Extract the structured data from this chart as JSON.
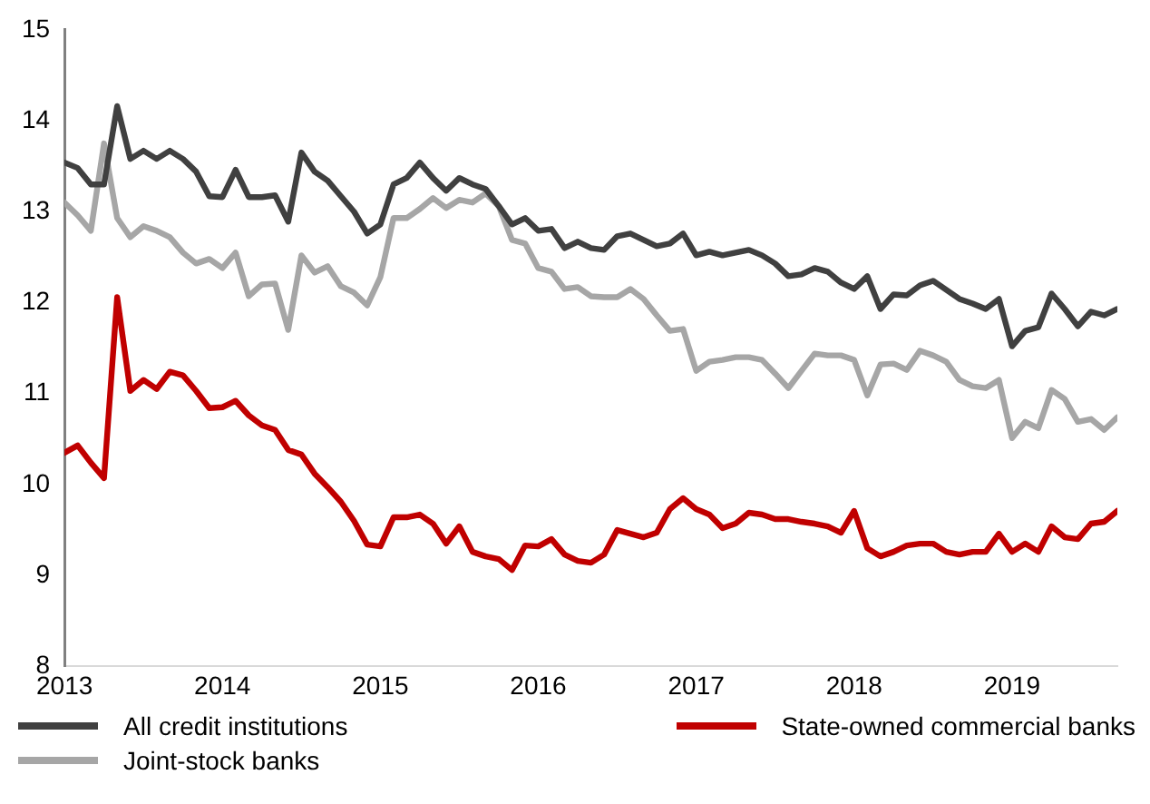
{
  "chart_data": {
    "type": "line",
    "x": [
      "2013-01",
      "2013-02",
      "2013-03",
      "2013-04",
      "2013-05",
      "2013-06",
      "2013-07",
      "2013-08",
      "2013-09",
      "2013-10",
      "2013-11",
      "2013-12",
      "2014-01",
      "2014-02",
      "2014-03",
      "2014-04",
      "2014-05",
      "2014-06",
      "2014-07",
      "2014-08",
      "2014-09",
      "2014-10",
      "2014-11",
      "2014-12",
      "2015-01",
      "2015-02",
      "2015-03",
      "2015-04",
      "2015-05",
      "2015-06",
      "2015-07",
      "2015-08",
      "2015-09",
      "2015-10",
      "2015-11",
      "2015-12",
      "2016-01",
      "2016-02",
      "2016-03",
      "2016-04",
      "2016-05",
      "2016-06",
      "2016-07",
      "2016-08",
      "2016-09",
      "2016-10",
      "2016-11",
      "2016-12",
      "2017-01",
      "2017-02",
      "2017-03",
      "2017-04",
      "2017-05",
      "2017-06",
      "2017-07",
      "2017-08",
      "2017-09",
      "2017-10",
      "2017-11",
      "2017-12",
      "2018-01",
      "2018-02",
      "2018-03",
      "2018-04",
      "2018-05",
      "2018-06",
      "2018-07",
      "2018-08",
      "2018-09",
      "2018-10",
      "2018-11",
      "2018-12",
      "2019-01",
      "2019-02",
      "2019-03",
      "2019-04",
      "2019-05",
      "2019-06",
      "2019-07",
      "2019-08",
      "2019-09"
    ],
    "series": [
      {
        "name": "All credit institutions",
        "color": "#404040",
        "values": [
          13.54,
          13.48,
          13.3,
          13.3,
          14.16,
          13.58,
          13.67,
          13.58,
          13.67,
          13.58,
          13.44,
          13.17,
          13.16,
          13.46,
          13.16,
          13.16,
          13.18,
          12.89,
          13.65,
          13.44,
          13.34,
          13.17,
          13.0,
          12.76,
          12.86,
          13.3,
          13.37,
          13.54,
          13.37,
          13.23,
          13.37,
          13.3,
          13.25,
          13.06,
          12.86,
          12.93,
          12.79,
          12.81,
          12.6,
          12.67,
          12.6,
          12.58,
          12.73,
          12.76,
          12.69,
          12.62,
          12.65,
          12.76,
          12.52,
          12.56,
          12.52,
          12.55,
          12.58,
          12.52,
          12.43,
          12.29,
          12.31,
          12.38,
          12.34,
          12.22,
          12.15,
          12.29,
          11.93,
          12.09,
          12.08,
          12.19,
          12.24,
          12.14,
          12.04,
          11.99,
          11.93,
          12.04,
          11.52,
          11.69,
          11.73,
          12.1,
          11.93,
          11.74,
          11.9,
          11.86,
          11.93
        ]
      },
      {
        "name": "State-owned commercial banks",
        "color": "#c00000",
        "values": [
          10.35,
          10.43,
          10.24,
          10.07,
          12.06,
          11.03,
          11.15,
          11.05,
          11.24,
          11.2,
          11.03,
          10.84,
          10.85,
          10.92,
          10.76,
          10.65,
          10.6,
          10.38,
          10.33,
          10.12,
          9.97,
          9.81,
          9.6,
          9.34,
          9.32,
          9.64,
          9.64,
          9.67,
          9.57,
          9.35,
          9.54,
          9.26,
          9.21,
          9.18,
          9.06,
          9.33,
          9.32,
          9.4,
          9.23,
          9.16,
          9.14,
          9.23,
          9.5,
          9.46,
          9.42,
          9.47,
          9.73,
          9.85,
          9.73,
          9.67,
          9.52,
          9.57,
          9.69,
          9.67,
          9.62,
          9.62,
          9.59,
          9.57,
          9.54,
          9.47,
          9.71,
          9.3,
          9.21,
          9.26,
          9.33,
          9.35,
          9.35,
          9.26,
          9.23,
          9.26,
          9.26,
          9.46,
          9.26,
          9.35,
          9.26,
          9.54,
          9.42,
          9.4,
          9.57,
          9.59,
          9.71
        ]
      },
      {
        "name": "Joint-stock banks",
        "color": "#a6a6a6",
        "values": [
          13.1,
          12.96,
          12.79,
          13.75,
          12.93,
          12.72,
          12.84,
          12.79,
          12.72,
          12.55,
          12.43,
          12.48,
          12.38,
          12.55,
          12.07,
          12.2,
          12.21,
          11.7,
          12.52,
          12.33,
          12.4,
          12.18,
          12.11,
          11.97,
          12.28,
          12.93,
          12.93,
          13.03,
          13.15,
          13.04,
          13.13,
          13.1,
          13.2,
          13.06,
          12.69,
          12.65,
          12.38,
          12.34,
          12.15,
          12.17,
          12.07,
          12.06,
          12.06,
          12.15,
          12.04,
          11.86,
          11.69,
          11.71,
          11.25,
          11.35,
          11.37,
          11.4,
          11.4,
          11.37,
          11.22,
          11.06,
          11.25,
          11.44,
          11.42,
          11.42,
          11.37,
          10.98,
          11.32,
          11.33,
          11.26,
          11.47,
          11.42,
          11.35,
          11.15,
          11.08,
          11.06,
          11.15,
          10.51,
          10.69,
          10.62,
          11.04,
          10.94,
          10.69,
          10.72,
          10.6,
          10.74
        ]
      }
    ],
    "xlim": [
      "2013-01",
      "2019-09"
    ],
    "xticks": [
      {
        "value": "2013-01",
        "label": "2013"
      },
      {
        "value": "2014-01",
        "label": "2014"
      },
      {
        "value": "2015-01",
        "label": "2015"
      },
      {
        "value": "2016-01",
        "label": "2016"
      },
      {
        "value": "2017-01",
        "label": "2017"
      },
      {
        "value": "2018-01",
        "label": "2018"
      },
      {
        "value": "2019-01",
        "label": "2019"
      }
    ],
    "ylim": [
      8,
      15
    ],
    "yticks": [
      8,
      9,
      10,
      11,
      12,
      13,
      14,
      15
    ],
    "grid": false,
    "legend": "bottom",
    "marker": "none",
    "line_style": "solid"
  }
}
